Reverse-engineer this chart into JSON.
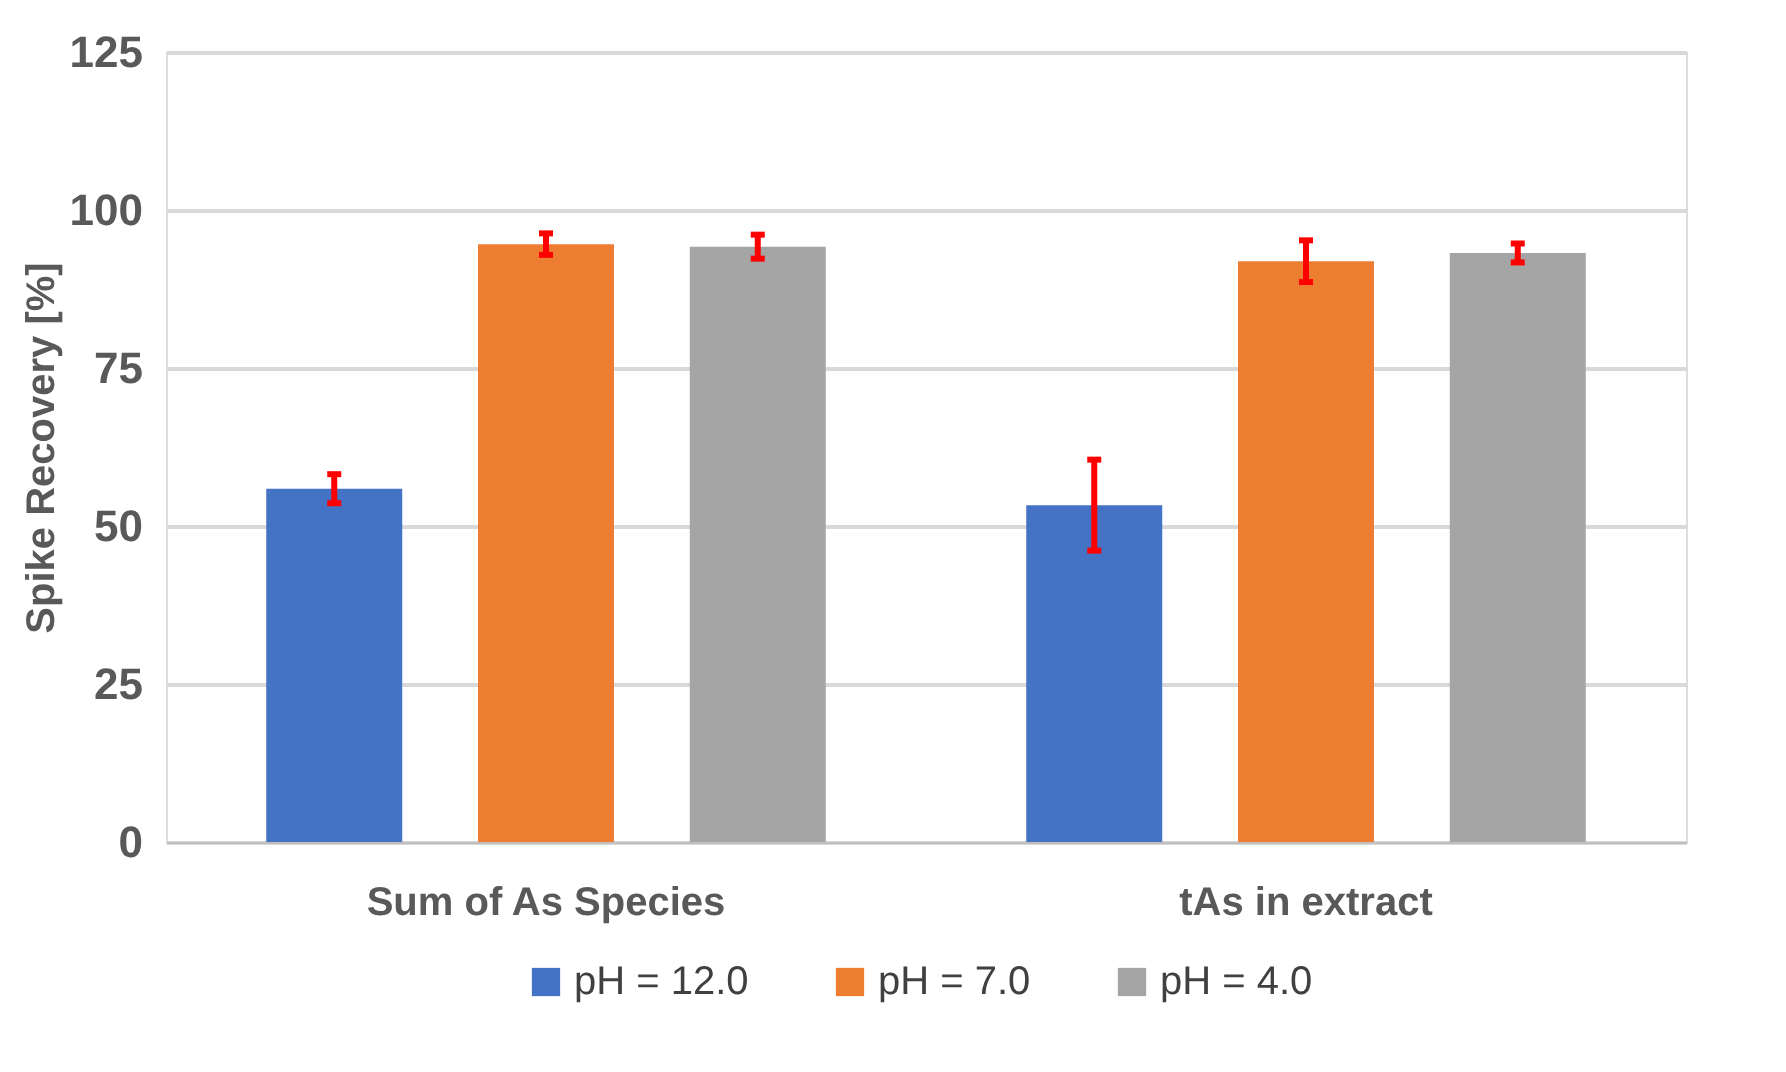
{
  "chart_data": {
    "type": "bar",
    "ylabel": "Spike Recovery [%]",
    "categories": [
      "Sum of As Species",
      "tAs in extract"
    ],
    "series": [
      {
        "name": "pH = 12.0",
        "color": "#4472c4",
        "values": [
          55.9,
          53.3
        ],
        "errors": [
          2.3,
          7.2
        ]
      },
      {
        "name": "pH = 7.0",
        "color": "#ed7d31",
        "values": [
          94.6,
          91.9
        ],
        "errors": [
          1.7,
          3.3
        ]
      },
      {
        "name": "pH = 4.0",
        "color": "#a5a5a5",
        "values": [
          94.2,
          93.2
        ],
        "errors": [
          1.9,
          1.5
        ]
      }
    ],
    "ylim": [
      0,
      125
    ],
    "yticks": [
      0,
      25,
      50,
      75,
      100,
      125
    ],
    "grid": "y",
    "legend": "bottom"
  }
}
